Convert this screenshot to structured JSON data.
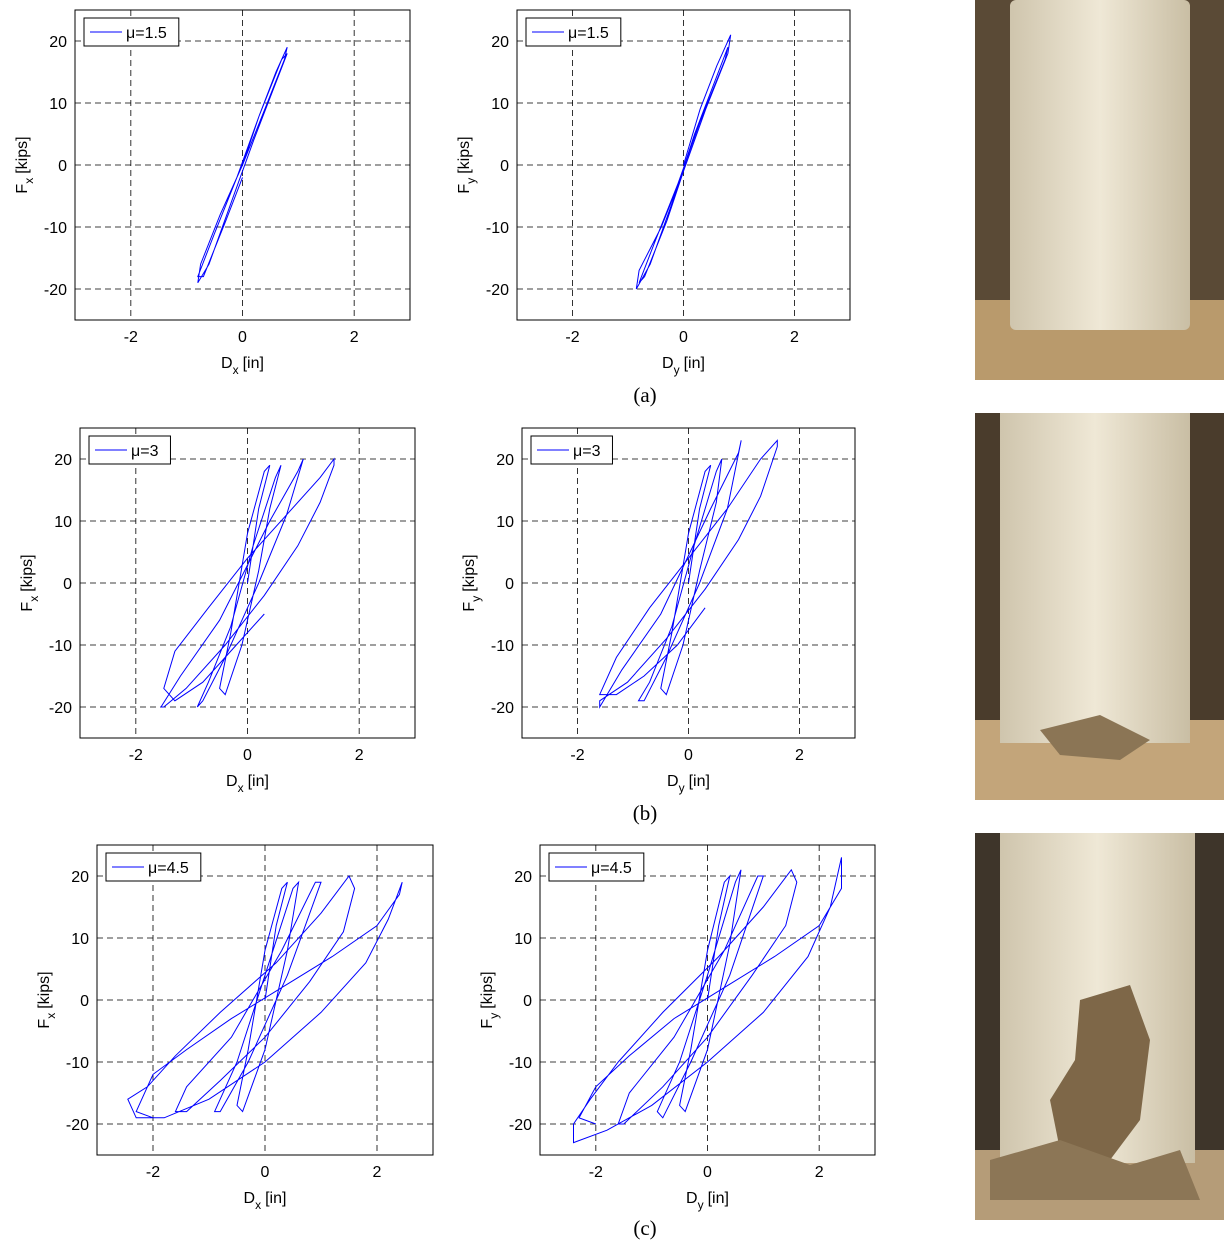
{
  "chart_data": [
    {
      "type": "line",
      "xlabel": {
        "symbol": "D",
        "subscript": "x",
        "unit": "[in]"
      },
      "ylabel": {
        "symbol": "F",
        "subscript": "x",
        "unit": "[kips]"
      },
      "xlim": [
        -3,
        3
      ],
      "xticks": [
        -2,
        0,
        2
      ],
      "ylim": [
        -25,
        25
      ],
      "yticks": [
        -20,
        -10,
        0,
        10,
        20
      ],
      "grid": true,
      "legend": "upper left",
      "series": [
        {
          "name": "μ=1.5",
          "color": "#0000ff",
          "x": [
            0,
            0.3,
            0.6,
            0.8,
            0.75,
            0.4,
            0,
            -0.4,
            -0.75,
            -0.8,
            -0.6,
            -0.2,
            0.2,
            0.5,
            0.8,
            0.7,
            0.3,
            -0.1,
            -0.5,
            -0.8,
            -0.7,
            -0.3,
            0
          ],
          "values": [
            0,
            8,
            15,
            19,
            17,
            9,
            0,
            -8,
            -16,
            -19,
            -16,
            -6,
            4,
            11,
            18,
            17,
            8,
            -2,
            -11,
            -18,
            -18,
            -9,
            -2
          ]
        }
      ]
    },
    {
      "type": "line",
      "xlabel": {
        "symbol": "D",
        "subscript": "y",
        "unit": "[in]"
      },
      "ylabel": {
        "symbol": "F",
        "subscript": "y",
        "unit": "[kips]"
      },
      "xlim": [
        -3,
        3
      ],
      "xticks": [
        -2,
        0,
        2
      ],
      "ylim": [
        -25,
        25
      ],
      "yticks": [
        -20,
        -10,
        0,
        10,
        20
      ],
      "grid": true,
      "legend": "upper left",
      "series": [
        {
          "name": "μ=1.5",
          "color": "#0000ff",
          "x": [
            0,
            0.3,
            0.6,
            0.85,
            0.8,
            0.4,
            0,
            -0.4,
            -0.8,
            -0.85,
            -0.6,
            -0.2,
            0.2,
            0.5,
            0.8,
            0.75,
            0.3,
            -0.1,
            -0.5,
            -0.8,
            -0.7,
            -0.3,
            0
          ],
          "values": [
            0,
            9,
            16,
            21,
            18,
            9,
            -1,
            -10,
            -17,
            -20,
            -16,
            -6,
            5,
            12,
            19,
            17,
            7,
            -3,
            -12,
            -19,
            -18,
            -9,
            -1
          ]
        }
      ]
    },
    {
      "type": "line",
      "xlabel": {
        "symbol": "D",
        "subscript": "x",
        "unit": "[in]"
      },
      "ylabel": {
        "symbol": "F",
        "subscript": "x",
        "unit": "[kips]"
      },
      "xlim": [
        -3,
        3
      ],
      "xticks": [
        -2,
        0,
        2
      ],
      "ylim": [
        -25,
        25
      ],
      "yticks": [
        -20,
        -10,
        0,
        10,
        20
      ],
      "grid": true,
      "legend": "upper left",
      "series": [
        {
          "name": "μ=3",
          "color": "#0000ff",
          "x": [
            0,
            0.2,
            0.4,
            0.3,
            0,
            -0.3,
            -0.5,
            -0.4,
            -0.1,
            0.2,
            0.4,
            0.6,
            0.5,
            0.1,
            -0.3,
            -0.7,
            -0.9,
            -0.8,
            -0.4,
            0.2,
            0.7,
            1.0,
            0.9,
            0.4,
            -0.5,
            -1.2,
            -1.55,
            -1.5,
            -1.1,
            -0.4,
            0.3,
            0.9,
            1.3,
            1.55,
            1.55,
            1.3,
            0.7,
            0,
            -0.7,
            -1.3,
            -1.5,
            -1.3,
            -0.8,
            -0.2,
            0.3
          ],
          "values": [
            0,
            12,
            19,
            18,
            8,
            -8,
            -17,
            -18,
            -10,
            2,
            12,
            19,
            17,
            6,
            -7,
            -16,
            -20,
            -19,
            -12,
            0,
            11,
            20,
            18,
            10,
            -6,
            -15,
            -20,
            -20,
            -17,
            -10,
            -2,
            6,
            13,
            19,
            20,
            17,
            11,
            4,
            -4,
            -11,
            -17,
            -19,
            -16,
            -10,
            -5
          ]
        }
      ]
    },
    {
      "type": "line",
      "xlabel": {
        "symbol": "D",
        "subscript": "y",
        "unit": "[in]"
      },
      "ylabel": {
        "symbol": "F",
        "subscript": "y",
        "unit": "[kips]"
      },
      "xlim": [
        -3,
        3
      ],
      "xticks": [
        -2,
        0,
        2
      ],
      "ylim": [
        -25,
        25
      ],
      "yticks": [
        -20,
        -10,
        0,
        10,
        20
      ],
      "grid": true,
      "legend": "upper left",
      "series": [
        {
          "name": "μ=3",
          "color": "#0000ff",
          "x": [
            0,
            0.2,
            0.4,
            0.3,
            0,
            -0.3,
            -0.5,
            -0.4,
            -0.1,
            0.2,
            0.5,
            0.6,
            0.5,
            0.1,
            -0.3,
            -0.7,
            -0.9,
            -0.8,
            -0.4,
            0.2,
            0.7,
            0.95,
            0.9,
            0.4,
            -0.5,
            -1.2,
            -1.6,
            -1.6,
            -1.1,
            -0.4,
            0.3,
            0.9,
            1.3,
            1.6,
            1.6,
            1.3,
            0.7,
            0,
            -0.7,
            -1.3,
            -1.6,
            -1.3,
            -0.8,
            -0.2,
            0.3
          ],
          "values": [
            0,
            12,
            19,
            18,
            8,
            -8,
            -17,
            -18,
            -10,
            2,
            13,
            20,
            18,
            6,
            -7,
            -16,
            -19,
            -19,
            -12,
            0,
            12,
            23,
            21,
            12,
            -5,
            -14,
            -20,
            -19,
            -16,
            -9,
            -1,
            7,
            14,
            22,
            23,
            20,
            12,
            4,
            -4,
            -12,
            -18,
            -18,
            -15,
            -10,
            -4
          ]
        }
      ]
    },
    {
      "type": "line",
      "xlabel": {
        "symbol": "D",
        "subscript": "x",
        "unit": "[in]"
      },
      "ylabel": {
        "symbol": "F",
        "subscript": "x",
        "unit": "[kips]"
      },
      "xlim": [
        -3,
        3
      ],
      "xticks": [
        -2,
        0,
        2
      ],
      "ylim": [
        -25,
        25
      ],
      "yticks": [
        -20,
        -10,
        0,
        10,
        20
      ],
      "grid": true,
      "legend": "upper left",
      "series": [
        {
          "name": "μ=4.5",
          "color": "#0000ff",
          "x": [
            0,
            0.2,
            0.4,
            0.3,
            0,
            -0.3,
            -0.5,
            -0.4,
            0,
            0.4,
            0.6,
            0.5,
            0,
            -0.5,
            -0.9,
            -0.8,
            -0.3,
            0.4,
            1.0,
            0.9,
            0.3,
            -0.6,
            -1.4,
            -1.6,
            -1.4,
            -0.8,
            0,
            0.8,
            1.4,
            1.6,
            1.5,
            1.0,
            0.2,
            -0.8,
            -1.6,
            -2.1,
            -2.45,
            -2.3,
            -1.8,
            -1.0,
            0,
            1.0,
            1.8,
            2.2,
            2.45,
            2.4,
            2.0,
            1.2,
            0.3,
            -0.6,
            -1.4,
            -2.0,
            -2.3,
            -2.0
          ],
          "values": [
            0,
            12,
            19,
            18,
            8,
            -8,
            -17,
            -18,
            -8,
            8,
            19,
            18,
            4,
            -10,
            -18,
            -18,
            -10,
            4,
            19,
            19,
            8,
            -6,
            -14,
            -18,
            -18,
            -13,
            -6,
            3,
            11,
            18,
            20,
            14,
            6,
            -2,
            -9,
            -14,
            -16,
            -19,
            -19,
            -16,
            -10,
            -2,
            6,
            13,
            19,
            17,
            12,
            7,
            2,
            -3,
            -8,
            -12,
            -18,
            -19
          ]
        }
      ]
    },
    {
      "type": "line",
      "xlabel": {
        "symbol": "D",
        "subscript": "y",
        "unit": "[in]"
      },
      "ylabel": {
        "symbol": "F",
        "subscript": "y",
        "unit": "[kips]"
      },
      "xlim": [
        -3,
        3
      ],
      "xticks": [
        -2,
        0,
        2
      ],
      "ylim": [
        -25,
        25
      ],
      "yticks": [
        -20,
        -10,
        0,
        10,
        20
      ],
      "grid": true,
      "legend": "upper left",
      "series": [
        {
          "name": "μ=4.5",
          "color": "#0000ff",
          "x": [
            0,
            0.2,
            0.4,
            0.3,
            0,
            -0.3,
            -0.5,
            -0.4,
            0,
            0.4,
            0.6,
            0.5,
            0,
            -0.5,
            -0.9,
            -0.8,
            -0.3,
            0.4,
            1.0,
            0.9,
            0.3,
            -0.6,
            -1.4,
            -1.6,
            -1.5,
            -0.8,
            0,
            0.8,
            1.4,
            1.6,
            1.5,
            1.0,
            0.2,
            -0.8,
            -1.6,
            -2.1,
            -2.4,
            -2.4,
            -1.8,
            -1.0,
            0,
            1.0,
            1.8,
            2.2,
            2.4,
            2.4,
            2.0,
            1.2,
            0.3,
            -0.6,
            -1.4,
            -2.0,
            -2.3,
            -2.0
          ],
          "values": [
            0,
            12,
            20,
            19,
            8,
            -8,
            -17,
            -18,
            -8,
            9,
            21,
            19,
            4,
            -10,
            -18,
            -19,
            -10,
            4,
            20,
            20,
            8,
            -6,
            -15,
            -20,
            -20,
            -14,
            -6,
            4,
            12,
            19,
            21,
            15,
            7,
            -2,
            -10,
            -16,
            -20,
            -23,
            -21,
            -17,
            -10,
            -2,
            7,
            15,
            23,
            18,
            12,
            7,
            2,
            -3,
            -9,
            -14,
            -19,
            -20
          ]
        }
      ]
    }
  ],
  "captions": [
    "(a)",
    "(b)",
    "(c)"
  ]
}
